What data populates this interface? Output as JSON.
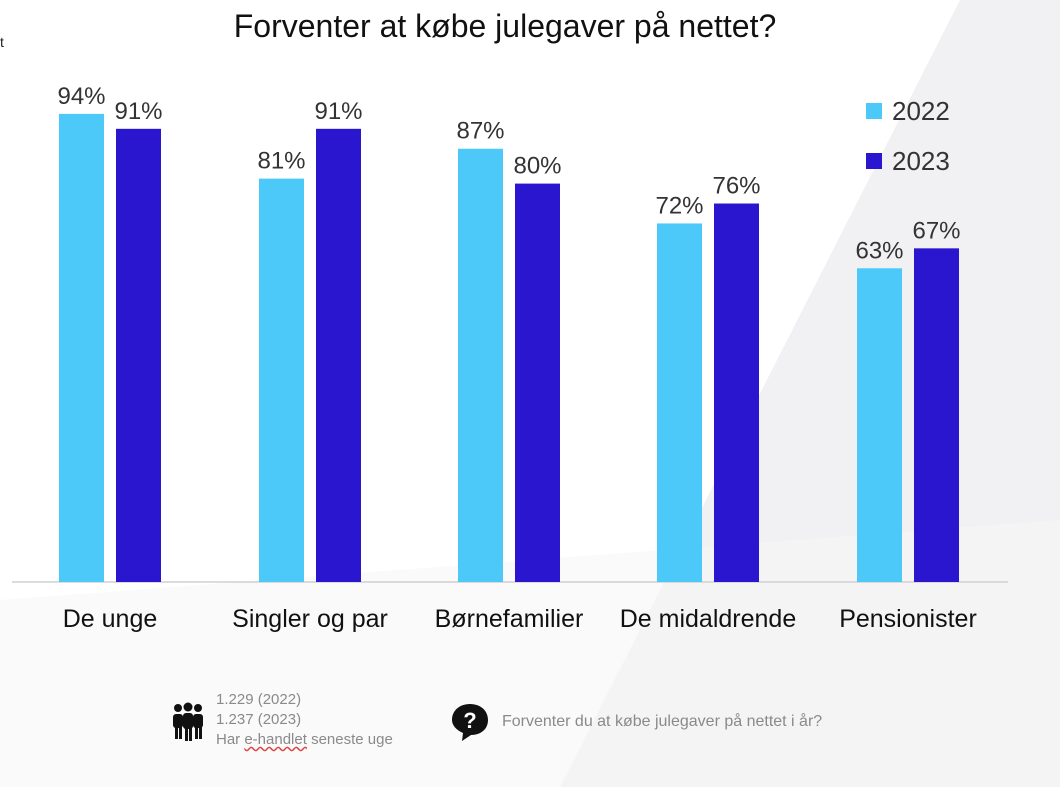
{
  "title": "Forventer at købe julegaver på nettet?",
  "corner_mark": "t",
  "colors": {
    "s2022": "#4dc9f9",
    "s2023": "#2a16cf",
    "baseline": "#d0d0d0",
    "value_label": "#333333",
    "category_label": "#111111"
  },
  "chart_data": {
    "type": "bar",
    "title": "Forventer at købe julegaver på nettet?",
    "categories": [
      "De unge",
      "Singler og par",
      "Børnefamilier",
      "De midaldrende",
      "Pensionister"
    ],
    "series": [
      {
        "name": "2022",
        "values": [
          94,
          81,
          87,
          72,
          63
        ]
      },
      {
        "name": "2023",
        "values": [
          91,
          91,
          80,
          76,
          67
        ]
      }
    ],
    "value_suffix": "%",
    "ylim": [
      0,
      100
    ],
    "grid": false,
    "legend": "top-right"
  },
  "legend": [
    {
      "label": "2022"
    },
    {
      "label": "2023"
    }
  ],
  "footer": {
    "respondents_2022": "1.229 (2022)",
    "respondents_2023": "1.237 (2023)",
    "respondents_note_underlined": "e-handlet",
    "respondents_note_prefix": "Har ",
    "respondents_note_suffix": " seneste uge",
    "question": "Forventer du at købe julegaver på nettet i år?",
    "people_icon": "people-group-icon",
    "question_icon": "question-bubble-icon"
  }
}
